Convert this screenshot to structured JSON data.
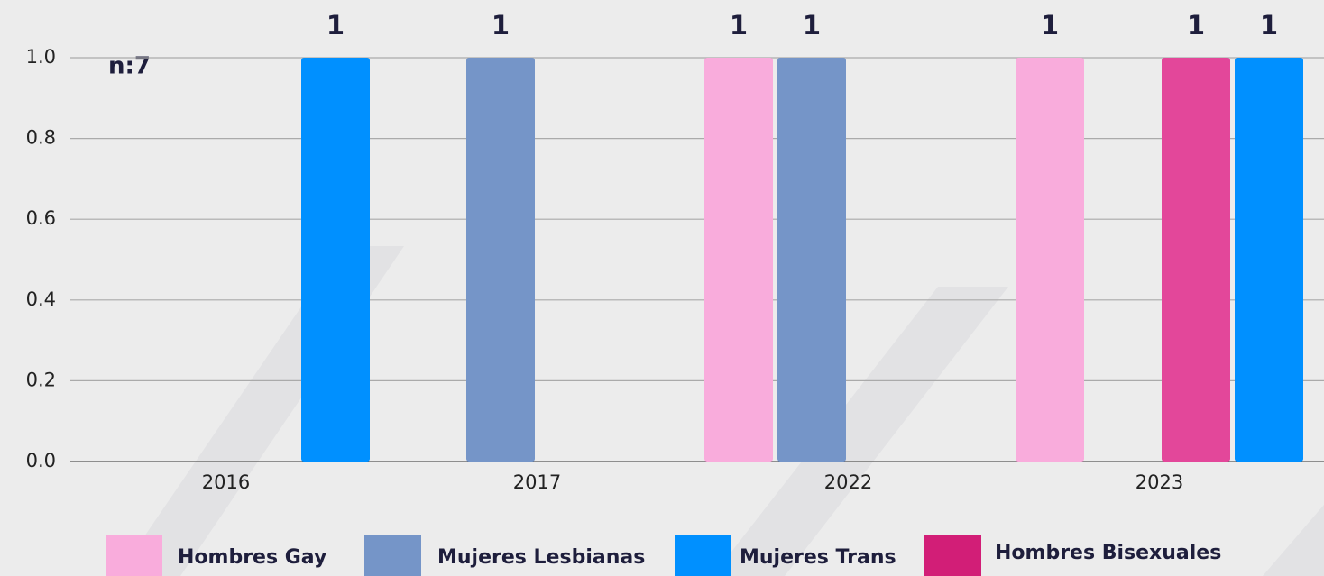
{
  "chart_data": {
    "type": "bar",
    "annotation": "n:7",
    "categories": [
      "2016",
      "2017",
      "2022",
      "2023"
    ],
    "series": [
      {
        "name": "Hombres Gay",
        "color": "#f9acdc",
        "values": [
          null,
          null,
          1,
          1
        ]
      },
      {
        "name": "Mujeres Lesbianas",
        "color": "#7595c8",
        "values": [
          null,
          1,
          1,
          null
        ]
      },
      {
        "name": "Mujeres Trans",
        "color": "#0090ff",
        "values": [
          1,
          null,
          null,
          1
        ]
      },
      {
        "name": "Hombres Bisexuales",
        "color": "#e3479a",
        "values": [
          null,
          null,
          null,
          1
        ]
      }
    ],
    "ylim": [
      0,
      1
    ],
    "yticks": [
      {
        "value": 0,
        "label": "0.0"
      },
      {
        "value": 0.2,
        "label": "0.2"
      },
      {
        "value": 0.4,
        "label": "0.4"
      },
      {
        "value": 0.6,
        "label": "0.6"
      },
      {
        "value": 0.8,
        "label": "0.8"
      },
      {
        "value": 1,
        "label": "1.0"
      }
    ],
    "grid": true,
    "legend": "bottom"
  }
}
